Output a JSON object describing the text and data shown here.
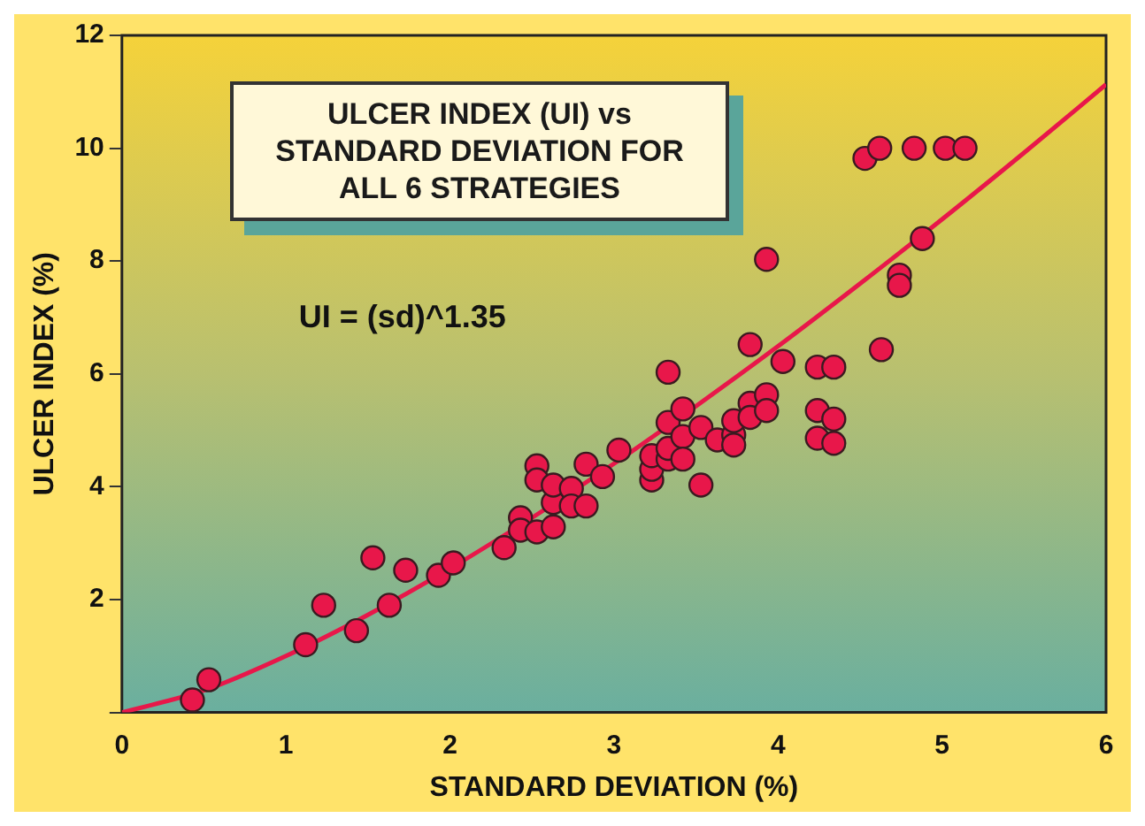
{
  "chart_data": {
    "type": "scatter",
    "title": "ULCER INDEX (UI) vs STANDARD DEVIATION FOR ALL 6 STRATEGIES",
    "xlabel": "STANDARD DEVIATION (%)",
    "ylabel": "ULCER INDEX (%)",
    "annotations": [
      "UI = (sd)^1.35"
    ],
    "xlim": [
      0,
      6
    ],
    "xticks": [
      0,
      1,
      2,
      3,
      4,
      5,
      6
    ],
    "ylim": [
      0,
      12
    ],
    "yticks": [
      {
        "value": 0,
        "label": null
      },
      2,
      4,
      6,
      8,
      10,
      12
    ],
    "grid": false,
    "legend": false,
    "marker": "circle",
    "series": [
      {
        "type": "scatter",
        "color": "#e8174a",
        "x": [
          0.43,
          0.53,
          1.12,
          1.23,
          1.43,
          1.53,
          1.63,
          1.73,
          1.93,
          2.02,
          2.33,
          2.43,
          2.43,
          2.53,
          2.53,
          2.53,
          2.63,
          2.63,
          2.63,
          2.74,
          2.74,
          2.83,
          2.83,
          2.93,
          3.03,
          3.23,
          3.23,
          3.23,
          3.33,
          3.33,
          3.33,
          3.33,
          3.42,
          3.42,
          3.42,
          3.53,
          3.53,
          3.63,
          3.73,
          3.73,
          3.73,
          3.83,
          3.83,
          3.83,
          3.93,
          3.93,
          3.93,
          4.03,
          4.24,
          4.24,
          4.24,
          4.34,
          4.34,
          4.34,
          4.63,
          4.74,
          4.74,
          4.88,
          4.53,
          4.62,
          4.83,
          5.02,
          5.14
        ],
        "values": [
          0.22,
          0.58,
          1.2,
          1.9,
          1.45,
          2.74,
          1.9,
          2.52,
          2.43,
          2.65,
          2.92,
          3.45,
          3.23,
          3.2,
          4.37,
          4.12,
          3.29,
          3.72,
          4.03,
          3.97,
          3.66,
          3.66,
          4.4,
          4.18,
          4.65,
          4.12,
          4.31,
          4.55,
          4.49,
          4.68,
          6.03,
          5.14,
          4.89,
          4.49,
          5.38,
          5.05,
          4.03,
          4.83,
          4.92,
          4.74,
          5.17,
          5.48,
          5.23,
          6.52,
          5.63,
          5.35,
          8.03,
          6.22,
          6.12,
          5.35,
          4.86,
          6.12,
          5.2,
          4.77,
          6.43,
          7.75,
          7.57,
          8.4,
          9.82,
          10.0,
          10.0,
          10.0,
          10.0
        ]
      },
      {
        "type": "line",
        "color": "#e8174a",
        "marker": "none",
        "line_style": "solid",
        "x": [
          0,
          0.5,
          1,
          1.5,
          2,
          2.5,
          3,
          3.5,
          4,
          4.5,
          5,
          5.5,
          6
        ],
        "values": [
          0,
          0.39,
          1,
          1.73,
          2.55,
          3.45,
          4.41,
          5.43,
          6.49,
          7.6,
          8.74,
          9.92,
          11.13
        ]
      }
    ]
  }
}
